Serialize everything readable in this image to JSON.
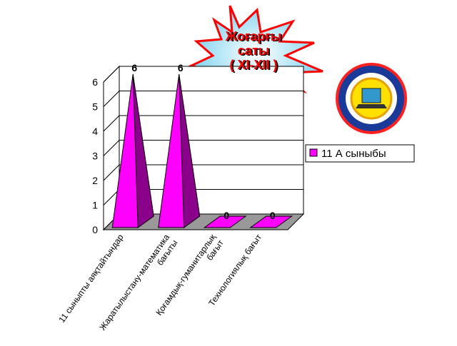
{
  "chart_data": {
    "type": "bar3d",
    "title": [
      "Жоғарғы",
      "саты",
      "( XI-XII )"
    ],
    "categories": [
      "11 сыныпты аяқтайтындар",
      "Жаратылыстану-математика\nбағыты",
      "Қоғамдық-гуманитарлық\nбағыт",
      "Технологиялық  бағыт"
    ],
    "series": [
      {
        "name": "11 А сыныбы",
        "color": "#ff00ff",
        "values": [
          6,
          6,
          0,
          0
        ]
      }
    ],
    "ylim": [
      0,
      6
    ],
    "yticks": [
      0,
      1,
      2,
      3,
      4,
      5,
      6
    ],
    "grid": true,
    "legend": "right"
  }
}
